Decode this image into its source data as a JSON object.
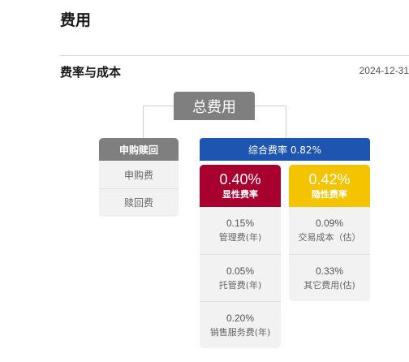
{
  "page": {
    "title": "费用"
  },
  "section": {
    "title": "费率与成本",
    "date": "2024-12-31"
  },
  "diagram": {
    "root": "总费用",
    "left": {
      "title": "申购赎回",
      "items": [
        "申购费",
        "赎回费"
      ]
    },
    "composite": {
      "title": "综合费率 0.82%",
      "explicit": {
        "rate": "0.40%",
        "label": "显性费率",
        "color": "#a8002f",
        "items": [
          {
            "value": "0.15%",
            "label": "管理费(年)"
          },
          {
            "value": "0.05%",
            "label": "托管费(年)"
          },
          {
            "value": "0.20%",
            "label": "销售服务费(年)"
          }
        ]
      },
      "implicit": {
        "rate": "0.42%",
        "label": "隐性费率",
        "color": "#f5c400",
        "items": [
          {
            "value": "0.09%",
            "label": "交易成本（估）"
          },
          {
            "value": "0.33%",
            "label": "其它费用(估)"
          }
        ]
      }
    }
  }
}
